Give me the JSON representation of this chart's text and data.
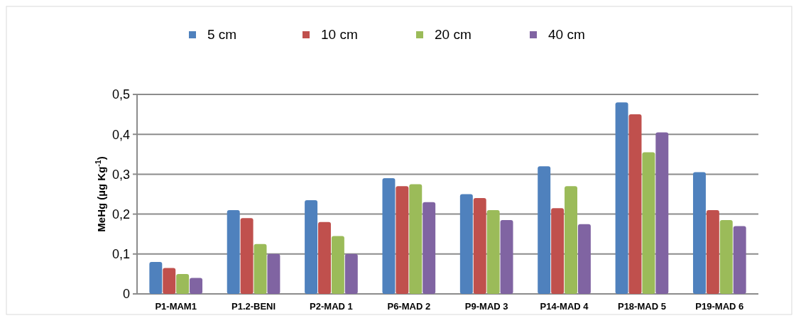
{
  "chart_data": {
    "type": "bar",
    "ylabel": "MeHg (µg Kg$^{-1}$)",
    "categories": [
      "P1-MAM1",
      "P1.2-BENI",
      "P2-MAD 1",
      "P6-MAD 2",
      "P9-MAD 3",
      "P14-MAD 4",
      "P18-MAD 5",
      "P19-MAD 6"
    ],
    "series": [
      {
        "name": "5 cm",
        "color": "#4f81bd",
        "values": [
          0.08,
          0.21,
          0.235,
          0.29,
          0.25,
          0.32,
          0.48,
          0.305
        ]
      },
      {
        "name": "10 cm",
        "color": "#c0504d",
        "values": [
          0.065,
          0.19,
          0.18,
          0.27,
          0.24,
          0.215,
          0.45,
          0.21
        ]
      },
      {
        "name": "20 cm",
        "color": "#9bbb59",
        "values": [
          0.05,
          0.125,
          0.145,
          0.275,
          0.21,
          0.27,
          0.355,
          0.185
        ]
      },
      {
        "name": "40 cm",
        "color": "#8064a2",
        "values": [
          0.04,
          0.1,
          0.1,
          0.23,
          0.185,
          0.175,
          0.405,
          0.17
        ]
      }
    ],
    "ylim": [
      0,
      0.5
    ],
    "yticks": [
      {
        "value": 0,
        "label": "0"
      },
      {
        "value": 0.1,
        "label": "0,1"
      },
      {
        "value": 0.2,
        "label": "0,2"
      },
      {
        "value": 0.3,
        "label": "0,3"
      },
      {
        "value": 0.4,
        "label": "0,4"
      },
      {
        "value": 0.5,
        "label": "0,5"
      }
    ],
    "grid": "y",
    "legend": "top"
  }
}
